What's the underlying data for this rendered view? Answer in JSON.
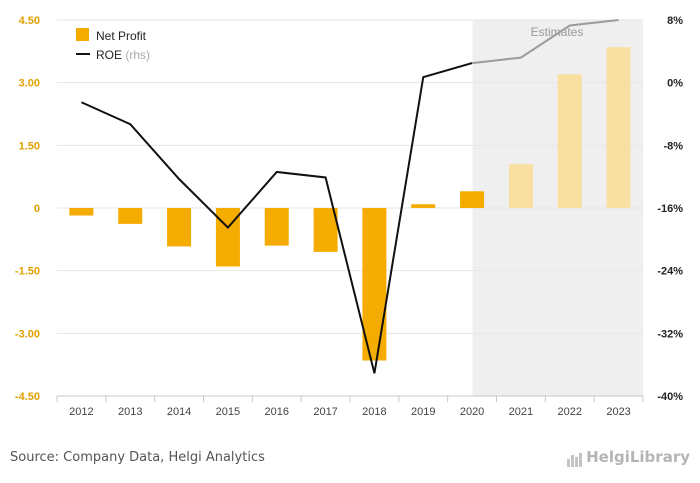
{
  "chart_data": {
    "type": "bar",
    "categories": [
      "2012",
      "2013",
      "2014",
      "2015",
      "2016",
      "2017",
      "2018",
      "2019",
      "2020",
      "2021",
      "2022",
      "2023"
    ],
    "series": [
      {
        "name": "Net Profit",
        "type": "bar",
        "axis": "left",
        "values": [
          -0.18,
          -0.38,
          -0.92,
          -1.4,
          -0.9,
          -1.05,
          -3.65,
          0.09,
          0.4,
          1.05,
          3.2,
          3.85
        ],
        "estimate_from_index": 9
      },
      {
        "name": "ROE",
        "type": "line",
        "axis": "right",
        "values": [
          -2.5,
          -5.3,
          -12.3,
          -18.5,
          -11.4,
          -12.1,
          -37.1,
          0.7,
          2.5,
          3.2,
          7.3,
          8.0
        ],
        "estimate_from_index": 8
      }
    ],
    "left_axis": {
      "ylim": [
        -4.5,
        4.5
      ],
      "ticks": [
        "4.50",
        "3.00",
        "1.50",
        "0",
        "-1.50",
        "-3.00",
        "-4.50"
      ]
    },
    "right_axis": {
      "ylim": [
        -40,
        8
      ],
      "ticks": [
        "8%",
        "0%",
        "-8%",
        "-16%",
        "-24%",
        "-32%",
        "-40%"
      ]
    },
    "legend": {
      "items": [
        "Net Profit",
        "ROE"
      ],
      "rhs_note": "(rhs)",
      "placement": "top-left"
    },
    "estimates_label": "Estimates",
    "estimates_start_category": "2021",
    "grid": true
  },
  "colors": {
    "bar": "#f5ac00",
    "bar_estimate": "#f9dfa1",
    "line": "#111111",
    "line_estimate": "#9c9c9c",
    "axis_text": "#e0a000",
    "shade": "#efefef"
  },
  "footer": {
    "source": "Source: Company Data, Helgi Analytics",
    "brand": "HelgiLibrary"
  }
}
